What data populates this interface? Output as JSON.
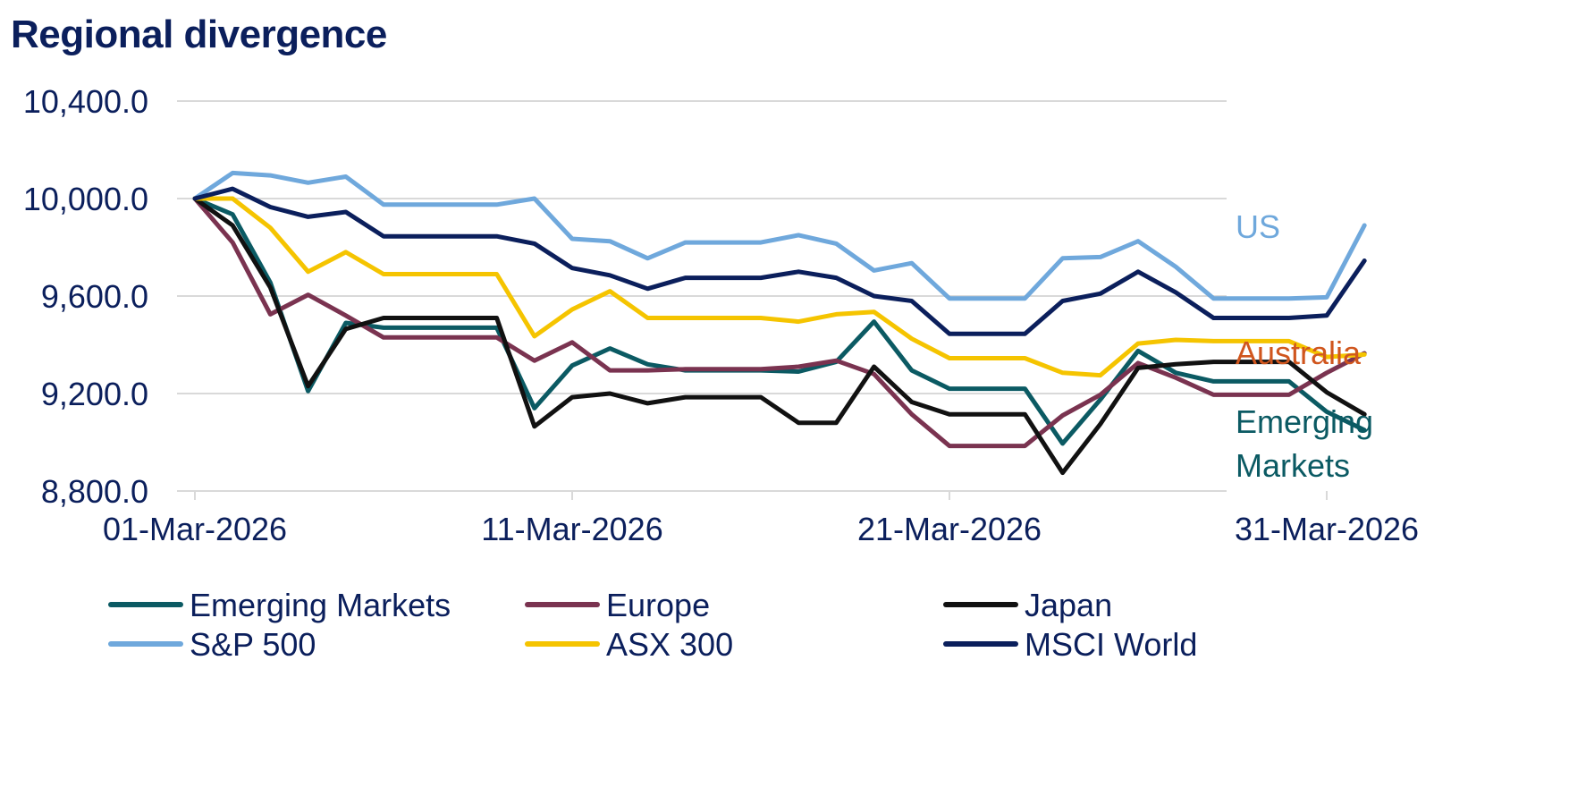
{
  "chart_data": {
    "type": "line",
    "title": "Regional divergence",
    "xlabel": "",
    "ylabel": "",
    "ylim": [
      8800,
      10400
    ],
    "yticks": [
      "10,400.0",
      "10,000.0",
      "9,600.0",
      "9,200.0",
      "8,800.0"
    ],
    "yticks_values": [
      10400,
      10000,
      9600,
      9200,
      8800
    ],
    "xticks": [
      "01-Mar-2026",
      "11-Mar-2026",
      "21-Mar-2026",
      "31-Mar-2026"
    ],
    "xticks_values": [
      "2026-03-01",
      "2026-03-11",
      "2026-03-21",
      "2026-03-31"
    ],
    "grid": true,
    "legend_position": "bottom",
    "x": [
      "2026-03-01",
      "2026-03-02",
      "2026-03-03",
      "2026-03-04",
      "2026-03-05",
      "2026-03-06",
      "2026-03-07",
      "2026-03-08",
      "2026-03-09",
      "2026-03-10",
      "2026-03-11",
      "2026-03-12",
      "2026-03-13",
      "2026-03-14",
      "2026-03-15",
      "2026-03-16",
      "2026-03-17",
      "2026-03-18",
      "2026-03-19",
      "2026-03-20",
      "2026-03-21",
      "2026-03-22",
      "2026-03-23",
      "2026-03-24",
      "2026-03-25",
      "2026-03-26",
      "2026-03-27",
      "2026-03-28",
      "2026-03-29",
      "2026-03-30",
      "2026-03-31",
      "2026-04-01"
    ],
    "series": [
      {
        "name": "Emerging Markets",
        "color": "#0b5a63",
        "values": [
          10000,
          9935,
          9655,
          9210,
          9490,
          9470,
          9470,
          9470,
          9470,
          9140,
          9315,
          9385,
          9320,
          9295,
          9295,
          9295,
          9290,
          9330,
          9495,
          9295,
          9220,
          9220,
          9220,
          8995,
          9175,
          9375,
          9285,
          9250,
          9250,
          9250,
          9125,
          9050
        ]
      },
      {
        "name": "Europe",
        "color": "#7a3350",
        "values": [
          10000,
          9820,
          9525,
          9605,
          9520,
          9430,
          9430,
          9430,
          9430,
          9335,
          9410,
          9295,
          9295,
          9300,
          9300,
          9300,
          9310,
          9335,
          9280,
          9115,
          8985,
          8985,
          8985,
          9110,
          9195,
          9325,
          9265,
          9195,
          9195,
          9195,
          9285,
          9365
        ]
      },
      {
        "name": "Japan",
        "color": "#111111",
        "values": [
          10000,
          9890,
          9635,
          9230,
          9465,
          9510,
          9510,
          9510,
          9510,
          9065,
          9185,
          9200,
          9160,
          9185,
          9185,
          9185,
          9080,
          9080,
          9310,
          9165,
          9115,
          9115,
          9115,
          8875,
          9075,
          9305,
          9320,
          9330,
          9330,
          9330,
          9205,
          9115
        ]
      },
      {
        "name": "S&P 500",
        "color": "#6fa8dc",
        "values": [
          10000,
          10105,
          10095,
          10065,
          10090,
          9975,
          9975,
          9975,
          9975,
          10000,
          9835,
          9825,
          9755,
          9820,
          9820,
          9820,
          9850,
          9815,
          9705,
          9735,
          9590,
          9590,
          9590,
          9755,
          9760,
          9825,
          9720,
          9590,
          9590,
          9590,
          9595,
          9890
        ]
      },
      {
        "name": "ASX 300",
        "color": "#f5c400",
        "values": [
          10000,
          10000,
          9880,
          9700,
          9780,
          9690,
          9690,
          9690,
          9690,
          9435,
          9545,
          9620,
          9510,
          9510,
          9510,
          9510,
          9495,
          9525,
          9535,
          9425,
          9345,
          9345,
          9345,
          9285,
          9275,
          9405,
          9420,
          9415,
          9415,
          9415,
          9350,
          9360
        ]
      },
      {
        "name": "MSCI World",
        "color": "#0b1f5c",
        "values": [
          10000,
          10040,
          9965,
          9925,
          9945,
          9845,
          9845,
          9845,
          9845,
          9815,
          9715,
          9685,
          9630,
          9675,
          9675,
          9675,
          9700,
          9675,
          9600,
          9580,
          9445,
          9445,
          9445,
          9580,
          9610,
          9700,
          9615,
          9510,
          9510,
          9510,
          9520,
          9745
        ]
      }
    ],
    "annotations": [
      {
        "text": "US",
        "color": "#6fa8dc"
      },
      {
        "text": "Australia",
        "color": "#d0561e"
      },
      {
        "text": "Emerging",
        "color": "#0b5a63"
      },
      {
        "text": "Markets",
        "color": "#0b5a63"
      }
    ]
  }
}
